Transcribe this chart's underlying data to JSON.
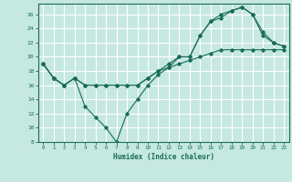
{
  "title": "",
  "xlabel": "Humidex (Indice chaleur)",
  "ylabel": "",
  "bg_color": "#c5e8e0",
  "line_color": "#1a6b5a",
  "grid_color": "#ffffff",
  "xlim": [
    -0.5,
    23.5
  ],
  "ylim": [
    8,
    27.5
  ],
  "xticks": [
    0,
    1,
    2,
    3,
    4,
    5,
    6,
    7,
    8,
    9,
    10,
    11,
    12,
    13,
    14,
    15,
    16,
    17,
    18,
    19,
    20,
    21,
    22,
    23
  ],
  "yticks": [
    8,
    10,
    12,
    14,
    16,
    18,
    20,
    22,
    24,
    26
  ],
  "line1": {
    "x": [
      0,
      1,
      2,
      3,
      4,
      5,
      6,
      7,
      8,
      9,
      10,
      11,
      12,
      13,
      14,
      15,
      16,
      17,
      18,
      19,
      20,
      21,
      22,
      23
    ],
    "y": [
      19,
      17,
      16,
      17,
      16,
      16,
      16,
      16,
      16,
      16,
      17,
      18,
      18.5,
      19,
      19.5,
      20,
      20.5,
      21,
      21,
      21,
      21,
      21,
      21,
      21
    ]
  },
  "line2": {
    "x": [
      0,
      1,
      2,
      3,
      4,
      5,
      6,
      7,
      8,
      9,
      10,
      11,
      12,
      13,
      14,
      15,
      16,
      17,
      18,
      19,
      20,
      21,
      22,
      23
    ],
    "y": [
      19,
      17,
      16,
      17,
      13,
      11.5,
      10,
      8,
      12,
      14,
      16,
      17.5,
      18.5,
      20,
      20,
      23,
      25,
      26,
      26.5,
      27,
      26,
      23,
      22,
      21.5
    ]
  },
  "line3": {
    "x": [
      0,
      1,
      2,
      3,
      4,
      5,
      6,
      7,
      8,
      9,
      10,
      11,
      12,
      13,
      14,
      15,
      16,
      17,
      18,
      19,
      20,
      21,
      22,
      23
    ],
    "y": [
      19,
      17,
      16,
      17,
      16,
      16,
      16,
      16,
      16,
      16,
      17,
      18,
      19,
      20,
      20,
      23,
      25,
      25.5,
      26.5,
      27,
      26,
      23.5,
      22,
      21.5
    ]
  }
}
